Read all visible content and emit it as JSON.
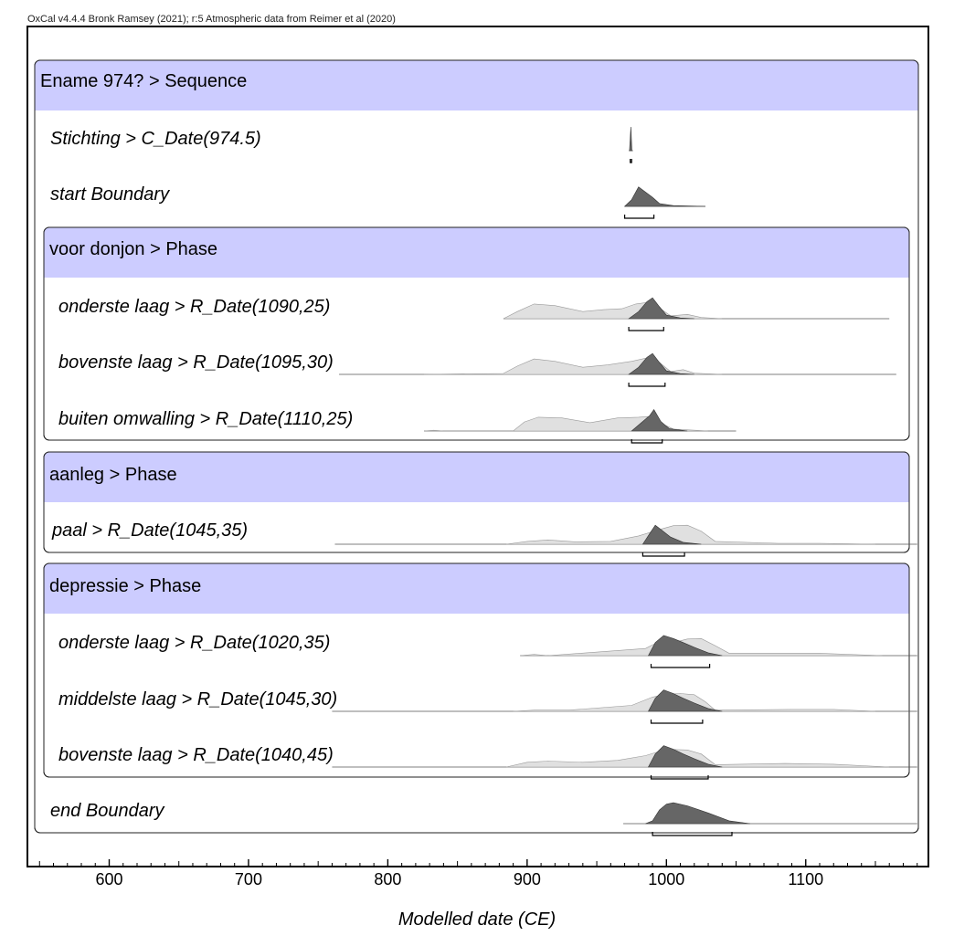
{
  "header": {
    "credit": "OxCal v4.4.4 Bronk Ramsey (2021); r:5 Atmospheric data from Reimer et al (2020)"
  },
  "colors": {
    "group_header": "#ccccff",
    "posterior": "#666666",
    "prior": "#e0e0e0",
    "frame": "#000000"
  },
  "chart_data": {
    "type": "area",
    "xlabel": "Modelled date (CE)",
    "xlim": [
      541,
      1180
    ],
    "ticks": [
      600,
      700,
      800,
      900,
      1000,
      1100
    ],
    "groups": [
      {
        "id": "g0",
        "label": "Ename 974? > Sequence",
        "level": 0
      },
      {
        "id": "g1",
        "label": "voor donjon > Phase",
        "level": 1
      },
      {
        "id": "g2",
        "label": "aanleg > Phase",
        "level": 1
      },
      {
        "id": "g3",
        "label": "depressie > Phase",
        "level": 1
      }
    ],
    "rows": [
      {
        "label": "Stichting > C_Date(974.5)",
        "group": "g0",
        "line": [
          973,
          976
        ],
        "range": [
          974,
          975
        ],
        "posterior": [
          [
            973.5,
            974.5,
            975.2
          ],
          [
            0,
            1,
            0
          ]
        ]
      },
      {
        "label": "start Boundary",
        "group": "g0",
        "line": [
          970,
          1028
        ],
        "range": [
          970,
          991
        ],
        "posterior": [
          [
            970,
            975,
            980,
            985,
            990,
            995,
            1005,
            1028
          ],
          [
            0,
            0.28,
            0.82,
            0.6,
            0.38,
            0.12,
            0.03,
            0
          ]
        ]
      },
      {
        "label": "onderste laag > R_Date(1090,25)",
        "group": "g1",
        "line": [
          883,
          1160
        ],
        "range": [
          973,
          998
        ],
        "prior": [
          [
            883,
            893,
            905,
            920,
            940,
            955,
            968,
            978,
            988,
            995,
            1003,
            1015,
            1025,
            1040
          ],
          [
            0,
            0.3,
            0.62,
            0.55,
            0.3,
            0.38,
            0.42,
            0.62,
            0.7,
            0.45,
            0.12,
            0.18,
            0.05,
            0
          ]
        ],
        "posterior": [
          [
            973,
            980,
            986,
            990,
            995,
            1000,
            1010,
            1020
          ],
          [
            0,
            0.3,
            0.72,
            0.88,
            0.5,
            0.15,
            0.03,
            0
          ]
        ]
      },
      {
        "label": "bovenste laag > R_Date(1095,30)",
        "group": "g1",
        "line": [
          765,
          1165
        ],
        "range": [
          973,
          999
        ],
        "prior": [
          [
            826,
            883,
            893,
            905,
            920,
            940,
            958,
            975,
            988,
            995,
            1003,
            1012,
            1020,
            1040
          ],
          [
            0,
            0.04,
            0.35,
            0.65,
            0.55,
            0.3,
            0.4,
            0.55,
            0.72,
            0.5,
            0.12,
            0.2,
            0.05,
            0
          ]
        ],
        "posterior": [
          [
            973,
            980,
            986,
            990,
            995,
            1000,
            1010,
            1020
          ],
          [
            0,
            0.3,
            0.72,
            0.88,
            0.5,
            0.15,
            0.03,
            0
          ]
        ]
      },
      {
        "label": "buiten omwalling > R_Date(1110,25)",
        "group": "g1",
        "line": [
          826,
          1050
        ],
        "range": [
          975,
          997
        ],
        "prior": [
          [
            826,
            833,
            840,
            890,
            898,
            908,
            925,
            945,
            965,
            980,
            990,
            997,
            1005,
            1030
          ],
          [
            0,
            0.03,
            0,
            0,
            0.38,
            0.58,
            0.55,
            0.35,
            0.55,
            0.58,
            0.62,
            0.3,
            0.08,
            0
          ]
        ],
        "posterior": [
          [
            975,
            982,
            988,
            991,
            996,
            1002,
            1015
          ],
          [
            0,
            0.35,
            0.65,
            0.9,
            0.4,
            0.1,
            0
          ]
        ]
      },
      {
        "label": "paal > R_Date(1045,35)",
        "group": "g2",
        "line": [
          762,
          1180
        ],
        "range": [
          983,
          1013
        ],
        "prior": [
          [
            885,
            900,
            915,
            935,
            960,
            980,
            995,
            1005,
            1015,
            1025,
            1035,
            1080,
            1110,
            1150
          ],
          [
            0,
            0.12,
            0.18,
            0.1,
            0.12,
            0.35,
            0.62,
            0.78,
            0.8,
            0.55,
            0.12,
            0.04,
            0.04,
            0
          ]
        ],
        "posterior": [
          [
            983,
            988,
            992,
            996,
            1003,
            1012,
            1025
          ],
          [
            0,
            0.45,
            0.8,
            0.62,
            0.3,
            0.08,
            0
          ]
        ]
      },
      {
        "label": "onderste laag > R_Date(1020,35)",
        "group": "g3",
        "line": [
          895,
          1180
        ],
        "range": [
          989,
          1031
        ],
        "prior": [
          [
            895,
            905,
            915,
            985,
            995,
            1005,
            1015,
            1025,
            1035,
            1045,
            1075,
            1110,
            1155
          ],
          [
            0,
            0.05,
            0,
            0.3,
            0.6,
            0.55,
            0.7,
            0.72,
            0.42,
            0.1,
            0.1,
            0.1,
            0
          ]
        ],
        "posterior": [
          [
            987,
            992,
            998,
            1005,
            1012,
            1020,
            1030,
            1040
          ],
          [
            0,
            0.55,
            0.85,
            0.72,
            0.55,
            0.35,
            0.12,
            0
          ]
        ]
      },
      {
        "label": "middelste laag > R_Date(1045,30)",
        "group": "g3",
        "line": [
          760,
          1180
        ],
        "range": [
          989,
          1026
        ],
        "prior": [
          [
            890,
            905,
            930,
            975,
            990,
            1000,
            1010,
            1020,
            1028,
            1035,
            1090,
            1120,
            1150
          ],
          [
            0,
            0.05,
            0.05,
            0.25,
            0.6,
            0.72,
            0.75,
            0.7,
            0.4,
            0.05,
            0.08,
            0.08,
            0
          ]
        ],
        "posterior": [
          [
            987,
            992,
            998,
            1005,
            1012,
            1020,
            1030,
            1040
          ],
          [
            0,
            0.55,
            0.9,
            0.75,
            0.55,
            0.35,
            0.12,
            0
          ]
        ]
      },
      {
        "label": "bovenste laag > R_Date(1040,45)",
        "group": "g3",
        "line": [
          760,
          1180
        ],
        "range": [
          989,
          1030
        ],
        "prior": [
          [
            885,
            900,
            915,
            940,
            965,
            985,
            1000,
            1015,
            1025,
            1035,
            1085,
            1120,
            1160
          ],
          [
            0,
            0.2,
            0.25,
            0.2,
            0.28,
            0.48,
            0.75,
            0.72,
            0.55,
            0.1,
            0.15,
            0.12,
            0
          ]
        ],
        "posterior": [
          [
            987,
            992,
            998,
            1005,
            1012,
            1020,
            1030,
            1040
          ],
          [
            0,
            0.55,
            0.9,
            0.75,
            0.55,
            0.35,
            0.12,
            0
          ]
        ]
      },
      {
        "label": "end Boundary",
        "group": "g0",
        "line": [
          969,
          1180
        ],
        "range": [
          990,
          1047
        ],
        "posterior": [
          [
            985,
            990,
            995,
            1000,
            1005,
            1015,
            1030,
            1045,
            1060
          ],
          [
            0,
            0.12,
            0.58,
            0.82,
            0.88,
            0.75,
            0.45,
            0.12,
            0
          ]
        ]
      }
    ]
  }
}
